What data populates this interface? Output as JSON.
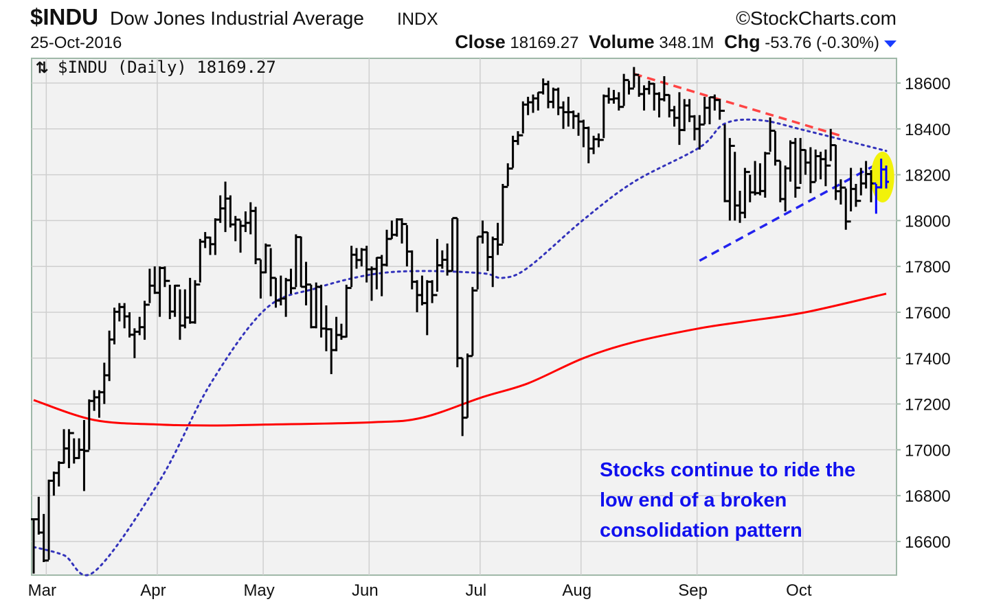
{
  "header": {
    "symbol": "$INDU",
    "name": "Dow Jones Industrial Average",
    "exchange": "INDX",
    "brand": "©StockCharts.com",
    "date": "25-Oct-2016",
    "close_label": "Close",
    "close_value": "18169.27",
    "volume_label": "Volume",
    "volume_value": "348.1M",
    "chg_label": "Chg",
    "chg_value": "-53.76 (-0.30%)",
    "chg_direction": "down",
    "legend": "$INDU (Daily) 18169.27"
  },
  "annotation": [
    "Stocks continue to ride the",
    "low end of a broken",
    "consolidation pattern"
  ],
  "colors": {
    "bars": "#000000",
    "recent_bars": "#0000ff",
    "ma50": "#3333bb",
    "ma200": "#ff0000",
    "resistance": "#ff4444",
    "support": "#2222ee",
    "highlight": "#f2f20a",
    "annotation": "#1010ee",
    "plot_bg": "#f2f2f2",
    "grid": "#cfcfcf"
  },
  "chart_data": {
    "type": "ohlc-bar",
    "ylim": [
      16450,
      18700
    ],
    "yticks": [
      16600,
      16800,
      17000,
      17200,
      17400,
      17600,
      17800,
      18000,
      18200,
      18400,
      18600
    ],
    "ytick_labels": [
      "16600",
      "16800",
      "17000",
      "17200",
      "17400",
      "17600",
      "17800",
      "18000",
      "18200",
      "18400",
      "18600"
    ],
    "xtick_labels": [
      {
        "label": "Mar",
        "date": "2016-03-01"
      },
      {
        "label": "Apr",
        "date": "2016-04-01"
      },
      {
        "label": "May",
        "date": "2016-05-02"
      },
      {
        "label": "Jun",
        "date": "2016-06-01"
      },
      {
        "label": "Jul",
        "date": "2016-07-01"
      },
      {
        "label": "Aug",
        "date": "2016-08-01"
      },
      {
        "label": "Sep",
        "date": "2016-09-01"
      },
      {
        "label": "Oct",
        "date": "2016-10-03"
      }
    ],
    "grid": true,
    "axis_side": "right",
    "bar_fields": [
      "date",
      "high",
      "low",
      "close"
    ],
    "bars": [
      [
        "2016-02-25",
        16700,
        16460,
        16697
      ],
      [
        "2016-02-26",
        16795,
        16630,
        16639
      ],
      [
        "2016-02-29",
        16720,
        16510,
        16517
      ],
      [
        "2016-03-01",
        16870,
        16520,
        16865
      ],
      [
        "2016-03-02",
        16905,
        16800,
        16899
      ],
      [
        "2016-03-03",
        16950,
        16840,
        16943
      ],
      [
        "2016-03-04",
        17090,
        16940,
        17006
      ],
      [
        "2016-03-07",
        17090,
        16920,
        17073
      ],
      [
        "2016-03-08",
        17050,
        16940,
        16964
      ],
      [
        "2016-03-09",
        17050,
        16960,
        17000
      ],
      [
        "2016-03-10",
        17130,
        16820,
        16995
      ],
      [
        "2016-03-11",
        17220,
        17000,
        17213
      ],
      [
        "2016-03-14",
        17260,
        17170,
        17229
      ],
      [
        "2016-03-15",
        17260,
        17140,
        17251
      ],
      [
        "2016-03-16",
        17380,
        17200,
        17325
      ],
      [
        "2016-03-17",
        17520,
        17300,
        17481
      ],
      [
        "2016-03-18",
        17620,
        17460,
        17602
      ],
      [
        "2016-03-21",
        17640,
        17560,
        17623
      ],
      [
        "2016-03-22",
        17640,
        17530,
        17582
      ],
      [
        "2016-03-23",
        17600,
        17490,
        17502
      ],
      [
        "2016-03-24",
        17530,
        17400,
        17515
      ],
      [
        "2016-03-28",
        17580,
        17500,
        17535
      ],
      [
        "2016-03-29",
        17650,
        17480,
        17633
      ],
      [
        "2016-03-30",
        17790,
        17640,
        17716
      ],
      [
        "2016-03-31",
        17800,
        17680,
        17685
      ],
      [
        "2016-04-01",
        17800,
        17580,
        17793
      ],
      [
        "2016-04-04",
        17800,
        17710,
        17737
      ],
      [
        "2016-04-05",
        17720,
        17570,
        17603
      ],
      [
        "2016-04-06",
        17720,
        17580,
        17716
      ],
      [
        "2016-04-07",
        17700,
        17480,
        17542
      ],
      [
        "2016-04-08",
        17700,
        17530,
        17577
      ],
      [
        "2016-04-11",
        17750,
        17550,
        17556
      ],
      [
        "2016-04-12",
        17740,
        17550,
        17721
      ],
      [
        "2016-04-13",
        17920,
        17730,
        17908
      ],
      [
        "2016-04-14",
        17950,
        17880,
        17926
      ],
      [
        "2016-04-15",
        17930,
        17850,
        17897
      ],
      [
        "2016-04-18",
        18010,
        17850,
        18004
      ],
      [
        "2016-04-19",
        18110,
        17990,
        18053
      ],
      [
        "2016-04-20",
        18170,
        17950,
        18096
      ],
      [
        "2016-04-21",
        18110,
        17970,
        17983
      ],
      [
        "2016-04-22",
        18020,
        17910,
        18004
      ],
      [
        "2016-04-25",
        18000,
        17860,
        17977
      ],
      [
        "2016-04-26",
        18040,
        17950,
        17990
      ],
      [
        "2016-04-27",
        18080,
        17940,
        18042
      ],
      [
        "2016-04-28",
        18060,
        17810,
        17831
      ],
      [
        "2016-04-29",
        17830,
        17660,
        17774
      ],
      [
        "2016-05-02",
        17900,
        17770,
        17891
      ],
      [
        "2016-05-03",
        17880,
        17670,
        17750
      ],
      [
        "2016-05-04",
        17750,
        17620,
        17651
      ],
      [
        "2016-05-05",
        17760,
        17630,
        17660
      ],
      [
        "2016-05-06",
        17750,
        17580,
        17740
      ],
      [
        "2016-05-09",
        17790,
        17680,
        17705
      ],
      [
        "2016-05-10",
        17940,
        17710,
        17928
      ],
      [
        "2016-05-11",
        17930,
        17710,
        17711
      ],
      [
        "2016-05-12",
        17820,
        17630,
        17721
      ],
      [
        "2016-05-13",
        17720,
        17530,
        17535
      ],
      [
        "2016-05-16",
        17730,
        17530,
        17711
      ],
      [
        "2016-05-17",
        17720,
        17490,
        17529
      ],
      [
        "2016-05-18",
        17630,
        17430,
        17526
      ],
      [
        "2016-05-19",
        17530,
        17330,
        17435
      ],
      [
        "2016-05-20",
        17580,
        17430,
        17501
      ],
      [
        "2016-05-23",
        17550,
        17480,
        17493
      ],
      [
        "2016-05-24",
        17720,
        17490,
        17706
      ],
      [
        "2016-05-25",
        17890,
        17710,
        17851
      ],
      [
        "2016-05-26",
        17880,
        17790,
        17828
      ],
      [
        "2016-05-27",
        17880,
        17800,
        17873
      ],
      [
        "2016-05-31",
        17890,
        17730,
        17787
      ],
      [
        "2016-06-01",
        17800,
        17650,
        17789
      ],
      [
        "2016-06-02",
        17840,
        17700,
        17838
      ],
      [
        "2016-06-03",
        17850,
        17670,
        17807
      ],
      [
        "2016-06-06",
        17960,
        17800,
        17920
      ],
      [
        "2016-06-07",
        18000,
        17920,
        17938
      ],
      [
        "2016-06-08",
        18010,
        17930,
        18005
      ],
      [
        "2016-06-09",
        18010,
        17900,
        17985
      ],
      [
        "2016-06-10",
        17980,
        17800,
        17865
      ],
      [
        "2016-06-13",
        17870,
        17700,
        17733
      ],
      [
        "2016-06-14",
        17740,
        17600,
        17675
      ],
      [
        "2016-06-15",
        17760,
        17630,
        17640
      ],
      [
        "2016-06-16",
        17740,
        17500,
        17733
      ],
      [
        "2016-06-17",
        17740,
        17640,
        17675
      ],
      [
        "2016-06-20",
        17920,
        17690,
        17805
      ],
      [
        "2016-06-21",
        17870,
        17790,
        17829
      ],
      [
        "2016-06-22",
        17900,
        17760,
        17780
      ],
      [
        "2016-06-23",
        18010,
        17780,
        18011
      ],
      [
        "2016-06-24",
        18010,
        17360,
        17400
      ],
      [
        "2016-06-27",
        17400,
        17060,
        17140
      ],
      [
        "2016-06-28",
        17420,
        17140,
        17409
      ],
      [
        "2016-06-29",
        17710,
        17410,
        17695
      ],
      [
        "2016-06-30",
        17930,
        17700,
        17930
      ],
      [
        "2016-07-01",
        18000,
        17900,
        17949
      ],
      [
        "2016-07-05",
        17950,
        17780,
        17841
      ],
      [
        "2016-07-06",
        17930,
        17710,
        17919
      ],
      [
        "2016-07-07",
        17990,
        17850,
        17895
      ],
      [
        "2016-07-08",
        18160,
        17900,
        18147
      ],
      [
        "2016-07-11",
        18250,
        18150,
        18227
      ],
      [
        "2016-07-12",
        18370,
        18230,
        18347
      ],
      [
        "2016-07-13",
        18390,
        18330,
        18372
      ],
      [
        "2016-07-14",
        18520,
        18380,
        18506
      ],
      [
        "2016-07-15",
        18540,
        18460,
        18516
      ],
      [
        "2016-07-18",
        18550,
        18470,
        18533
      ],
      [
        "2016-07-19",
        18560,
        18480,
        18559
      ],
      [
        "2016-07-20",
        18620,
        18550,
        18595
      ],
      [
        "2016-07-21",
        18610,
        18490,
        18518
      ],
      [
        "2016-07-22",
        18580,
        18490,
        18571
      ],
      [
        "2016-07-25",
        18580,
        18460,
        18493
      ],
      [
        "2016-07-26",
        18520,
        18400,
        18473
      ],
      [
        "2016-07-27",
        18540,
        18410,
        18473
      ],
      [
        "2016-07-28",
        18480,
        18400,
        18456
      ],
      [
        "2016-07-29",
        18470,
        18370,
        18432
      ],
      [
        "2016-08-01",
        18440,
        18320,
        18404
      ],
      [
        "2016-08-02",
        18410,
        18250,
        18314
      ],
      [
        "2016-08-03",
        18370,
        18290,
        18355
      ],
      [
        "2016-08-04",
        18380,
        18320,
        18352
      ],
      [
        "2016-08-05",
        18550,
        18360,
        18543
      ],
      [
        "2016-08-08",
        18580,
        18510,
        18529
      ],
      [
        "2016-08-09",
        18570,
        18510,
        18533
      ],
      [
        "2016-08-10",
        18560,
        18480,
        18496
      ],
      [
        "2016-08-11",
        18640,
        18500,
        18613
      ],
      [
        "2016-08-12",
        18610,
        18550,
        18576
      ],
      [
        "2016-08-15",
        18670,
        18580,
        18636
      ],
      [
        "2016-08-16",
        18630,
        18540,
        18552
      ],
      [
        "2016-08-17",
        18590,
        18480,
        18574
      ],
      [
        "2016-08-18",
        18610,
        18550,
        18597
      ],
      [
        "2016-08-19",
        18600,
        18480,
        18553
      ],
      [
        "2016-08-22",
        18560,
        18450,
        18529
      ],
      [
        "2016-08-23",
        18630,
        18520,
        18548
      ],
      [
        "2016-08-24",
        18550,
        18450,
        18481
      ],
      [
        "2016-08-25",
        18500,
        18410,
        18448
      ],
      [
        "2016-08-26",
        18560,
        18330,
        18395
      ],
      [
        "2016-08-29",
        18530,
        18390,
        18502
      ],
      [
        "2016-08-30",
        18530,
        18430,
        18454
      ],
      [
        "2016-08-31",
        18460,
        18350,
        18400
      ],
      [
        "2016-09-01",
        18460,
        18310,
        18419
      ],
      [
        "2016-09-02",
        18540,
        18420,
        18492
      ],
      [
        "2016-09-06",
        18540,
        18420,
        18538
      ],
      [
        "2016-09-07",
        18550,
        18480,
        18526
      ],
      [
        "2016-09-08",
        18530,
        18440,
        18479
      ],
      [
        "2016-09-09",
        18420,
        18080,
        18085
      ],
      [
        "2016-09-12",
        18360,
        18000,
        18326
      ],
      [
        "2016-09-13",
        18300,
        18000,
        18066
      ],
      [
        "2016-09-14",
        18130,
        17990,
        18034
      ],
      [
        "2016-09-15",
        18230,
        18010,
        18212
      ],
      [
        "2016-09-16",
        18200,
        18080,
        18123
      ],
      [
        "2016-09-19",
        18260,
        18110,
        18120
      ],
      [
        "2016-09-20",
        18250,
        18110,
        18129
      ],
      [
        "2016-09-21",
        18300,
        18100,
        18293
      ],
      [
        "2016-09-22",
        18450,
        18300,
        18392
      ],
      [
        "2016-09-23",
        18390,
        18240,
        18261
      ],
      [
        "2016-09-26",
        18260,
        18080,
        18094
      ],
      [
        "2016-09-27",
        18240,
        18040,
        18228
      ],
      [
        "2016-09-28",
        18350,
        18170,
        18339
      ],
      [
        "2016-09-29",
        18360,
        18100,
        18143
      ],
      [
        "2016-09-30",
        18360,
        18160,
        18308
      ],
      [
        "2016-10-03",
        18310,
        18200,
        18253
      ],
      [
        "2016-10-04",
        18320,
        18120,
        18168
      ],
      [
        "2016-10-05",
        18310,
        18170,
        18281
      ],
      [
        "2016-10-06",
        18300,
        18180,
        18268
      ],
      [
        "2016-10-07",
        18310,
        18150,
        18240
      ],
      [
        "2016-10-10",
        18400,
        18260,
        18329
      ],
      [
        "2016-10-11",
        18330,
        18090,
        18128
      ],
      [
        "2016-10-12",
        18180,
        18070,
        18144
      ],
      [
        "2016-10-13",
        18140,
        17960,
        17996
      ],
      [
        "2016-10-14",
        18230,
        18040,
        18138
      ],
      [
        "2016-10-17",
        18160,
        18060,
        18086
      ],
      [
        "2016-10-18",
        18230,
        18110,
        18162
      ],
      [
        "2016-10-19",
        18260,
        18140,
        18203
      ],
      [
        "2016-10-20",
        18220,
        18080,
        18162
      ],
      [
        "2016-10-21",
        18160,
        18030,
        18145
      ],
      [
        "2016-10-24",
        18270,
        18140,
        18223
      ],
      [
        "2016-10-25",
        18240,
        18140,
        18169
      ]
    ],
    "highlighted_recent_bars": 3,
    "moving_averages": [
      {
        "type": "50-day",
        "style": "dotted",
        "color": "#3333bb",
        "points": [
          [
            "2016-02-25",
            16576
          ],
          [
            "2016-03-04",
            16540
          ],
          [
            "2016-03-14",
            16468
          ],
          [
            "2016-04-01",
            16866
          ],
          [
            "2016-04-15",
            17286
          ],
          [
            "2016-05-02",
            17615
          ],
          [
            "2016-05-16",
            17705
          ],
          [
            "2016-06-01",
            17765
          ],
          [
            "2016-06-15",
            17780
          ],
          [
            "2016-07-01",
            17770
          ],
          [
            "2016-07-08",
            17750
          ],
          [
            "2016-07-15",
            17795
          ],
          [
            "2016-08-01",
            18004
          ],
          [
            "2016-08-15",
            18169
          ],
          [
            "2016-09-01",
            18319
          ],
          [
            "2016-09-09",
            18423
          ],
          [
            "2016-09-20",
            18438
          ],
          [
            "2016-10-03",
            18393
          ],
          [
            "2016-10-25",
            18304
          ]
        ]
      },
      {
        "type": "200-day",
        "style": "solid",
        "color": "#ff0000",
        "points": [
          [
            "2016-02-25",
            17217
          ],
          [
            "2016-03-14",
            17130
          ],
          [
            "2016-04-01",
            17110
          ],
          [
            "2016-04-15",
            17106
          ],
          [
            "2016-05-02",
            17110
          ],
          [
            "2016-06-01",
            17120
          ],
          [
            "2016-06-15",
            17140
          ],
          [
            "2016-07-01",
            17230
          ],
          [
            "2016-07-15",
            17290
          ],
          [
            "2016-08-01",
            17400
          ],
          [
            "2016-08-15",
            17470
          ],
          [
            "2016-09-01",
            17530
          ],
          [
            "2016-09-15",
            17560
          ],
          [
            "2016-10-03",
            17600
          ],
          [
            "2016-10-25",
            17681
          ]
        ]
      }
    ],
    "trendlines": [
      {
        "kind": "resistance",
        "style": "dashed",
        "color": "#ff4444",
        "from": [
          "2016-08-15",
          18640
        ],
        "to": [
          "2016-10-12",
          18370
        ]
      },
      {
        "kind": "support",
        "style": "dashed",
        "color": "#2222ee",
        "from": [
          "2016-09-01",
          17825
        ],
        "to": [
          "2016-10-25",
          18268
        ]
      }
    ],
    "highlight": {
      "shape": "ellipse",
      "date": "2016-10-24",
      "value": 18190,
      "color": "#f2f20a"
    }
  }
}
